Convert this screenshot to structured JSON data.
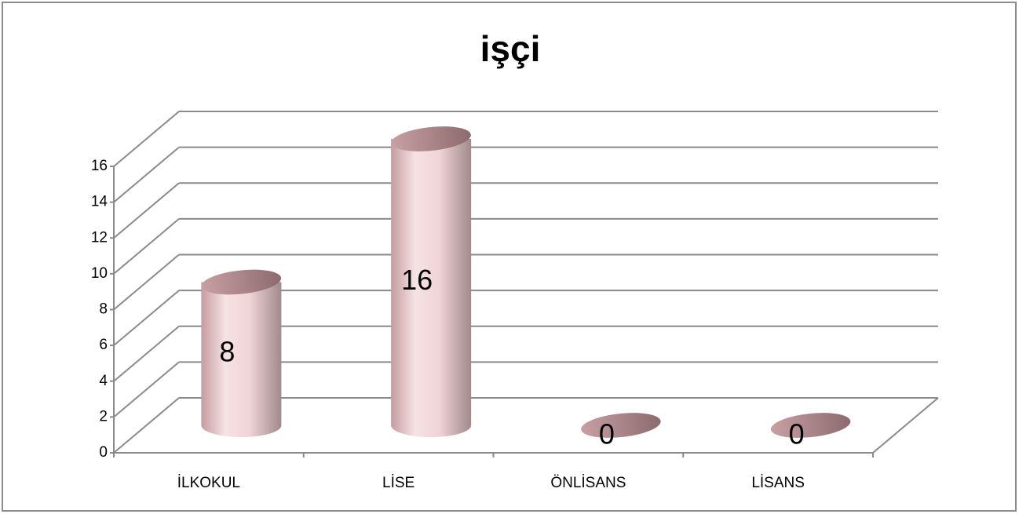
{
  "chart_data": {
    "type": "bar",
    "title": "işçi",
    "categories": [
      "İLKOKUL",
      "LİSE",
      "ÖNLİSANS",
      "LİSANS"
    ],
    "values": [
      8,
      16,
      0,
      0
    ],
    "color": "#d8b4b8",
    "ylim": [
      0,
      16
    ],
    "yticks": [
      0,
      2,
      4,
      6,
      8,
      10,
      12,
      14,
      16
    ],
    "grid": true
  }
}
